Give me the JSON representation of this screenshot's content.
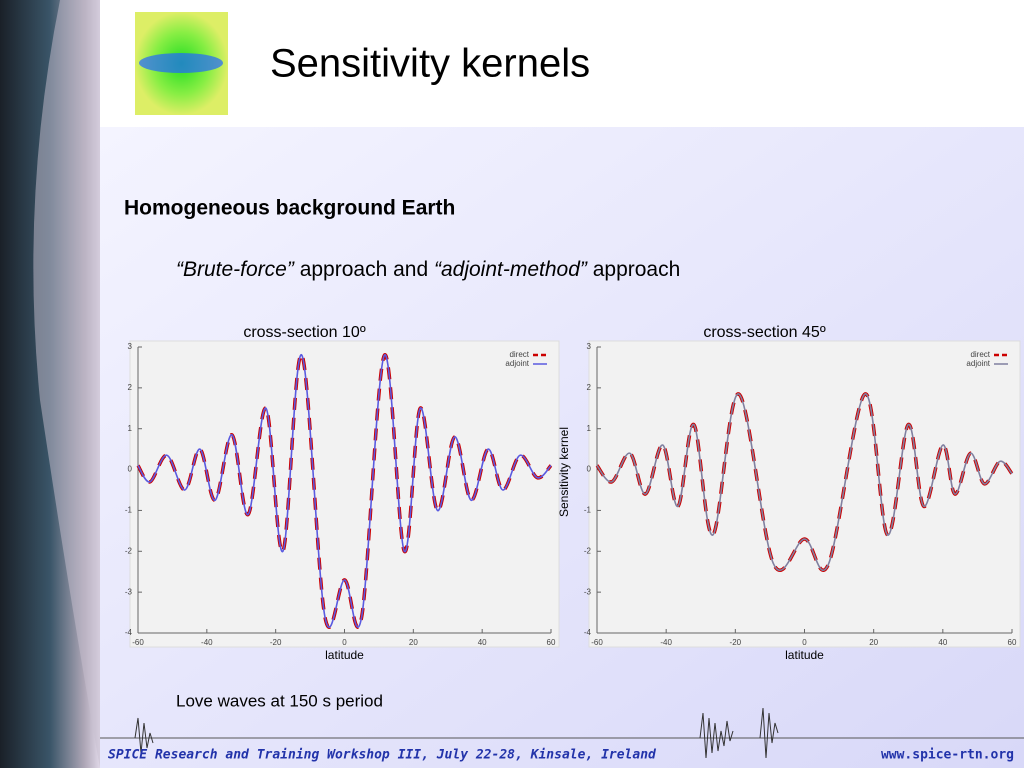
{
  "slide": {
    "title": "Sensitivity kernels",
    "heading": "Homogeneous background Earth",
    "subtitle": [
      "“Brute-force”",
      " approach and ",
      "“adjoint-method”",
      " approach"
    ],
    "caption": "Love waves at 150 s period",
    "footer_left": "SPICE Research and Training Workshop III, July 22-28, Kinsale, Ireland",
    "footer_right": "www.spice-rtn.org"
  },
  "chart_data": [
    {
      "type": "line",
      "title": "cross-section 10º",
      "xlabel": "latitude",
      "xlim": [
        -60,
        60
      ],
      "xticks": [
        -60,
        -40,
        -20,
        0,
        20,
        40,
        60
      ],
      "ylim": [
        -4,
        3
      ],
      "yticks": [
        -4,
        -3,
        -2,
        -1,
        0,
        1,
        2,
        3
      ],
      "x": [
        -60,
        -56.5,
        -51.6,
        -46.4,
        -42,
        -37.6,
        -32.7,
        -28,
        -22.8,
        -17.9,
        -12.4,
        -5.7,
        0,
        5,
        11.6,
        17.4,
        22,
        27,
        32,
        36.8,
        41.7,
        46,
        51,
        56,
        60
      ],
      "series": [
        {
          "name": "direct",
          "color": "#cc0000",
          "values": [
            0.1,
            -0.3,
            0.35,
            -0.5,
            0.5,
            -0.75,
            0.85,
            -1.1,
            1.5,
            -2.0,
            2.8,
            -3.6,
            -2.7,
            -3.6,
            2.8,
            -2.0,
            1.5,
            -1.0,
            0.8,
            -0.75,
            0.5,
            -0.5,
            0.35,
            -0.2,
            0.1
          ]
        },
        {
          "name": "adjoint",
          "color": "#5a5ae0",
          "values": [
            0.1,
            -0.3,
            0.35,
            -0.5,
            0.5,
            -0.75,
            0.85,
            -1.1,
            1.5,
            -2.0,
            2.8,
            -3.6,
            -2.7,
            -3.6,
            2.8,
            -2.0,
            1.5,
            -1.0,
            0.8,
            -0.75,
            0.5,
            -0.5,
            0.35,
            -0.2,
            0.1
          ]
        }
      ]
    },
    {
      "type": "line",
      "title": "cross-section 45º",
      "xlabel": "latitude",
      "ylabel": "Sensitivity kernel",
      "xlim": [
        -60,
        60
      ],
      "xticks": [
        -60,
        -40,
        -20,
        0,
        20,
        40,
        60
      ],
      "ylim": [
        -4,
        3
      ],
      "yticks": [
        -4,
        -3,
        -2,
        -1,
        0,
        1,
        2,
        3
      ],
      "x": [
        -60,
        -55.7,
        -50.5,
        -46,
        -41,
        -36.6,
        -32,
        -26.5,
        -19,
        -9,
        0,
        7,
        17.5,
        24,
        30,
        34.5,
        40,
        43.5,
        48,
        52,
        56.5,
        60
      ],
      "series": [
        {
          "name": "direct",
          "color": "#cc0000",
          "values": [
            0.1,
            -0.3,
            0.4,
            -0.6,
            0.6,
            -0.9,
            1.1,
            -1.6,
            1.85,
            -2.3,
            -1.7,
            -2.3,
            1.85,
            -1.6,
            1.1,
            -0.9,
            0.6,
            -0.6,
            0.4,
            -0.35,
            0.2,
            -0.1
          ]
        },
        {
          "name": "adjoint",
          "color": "#8080a0",
          "values": [
            0.1,
            -0.3,
            0.4,
            -0.6,
            0.6,
            -0.9,
            1.1,
            -1.6,
            1.85,
            -2.3,
            -1.7,
            -2.3,
            1.85,
            -1.6,
            1.1,
            -0.9,
            0.6,
            -0.6,
            0.4,
            -0.35,
            0.2,
            -0.1
          ]
        }
      ]
    }
  ]
}
